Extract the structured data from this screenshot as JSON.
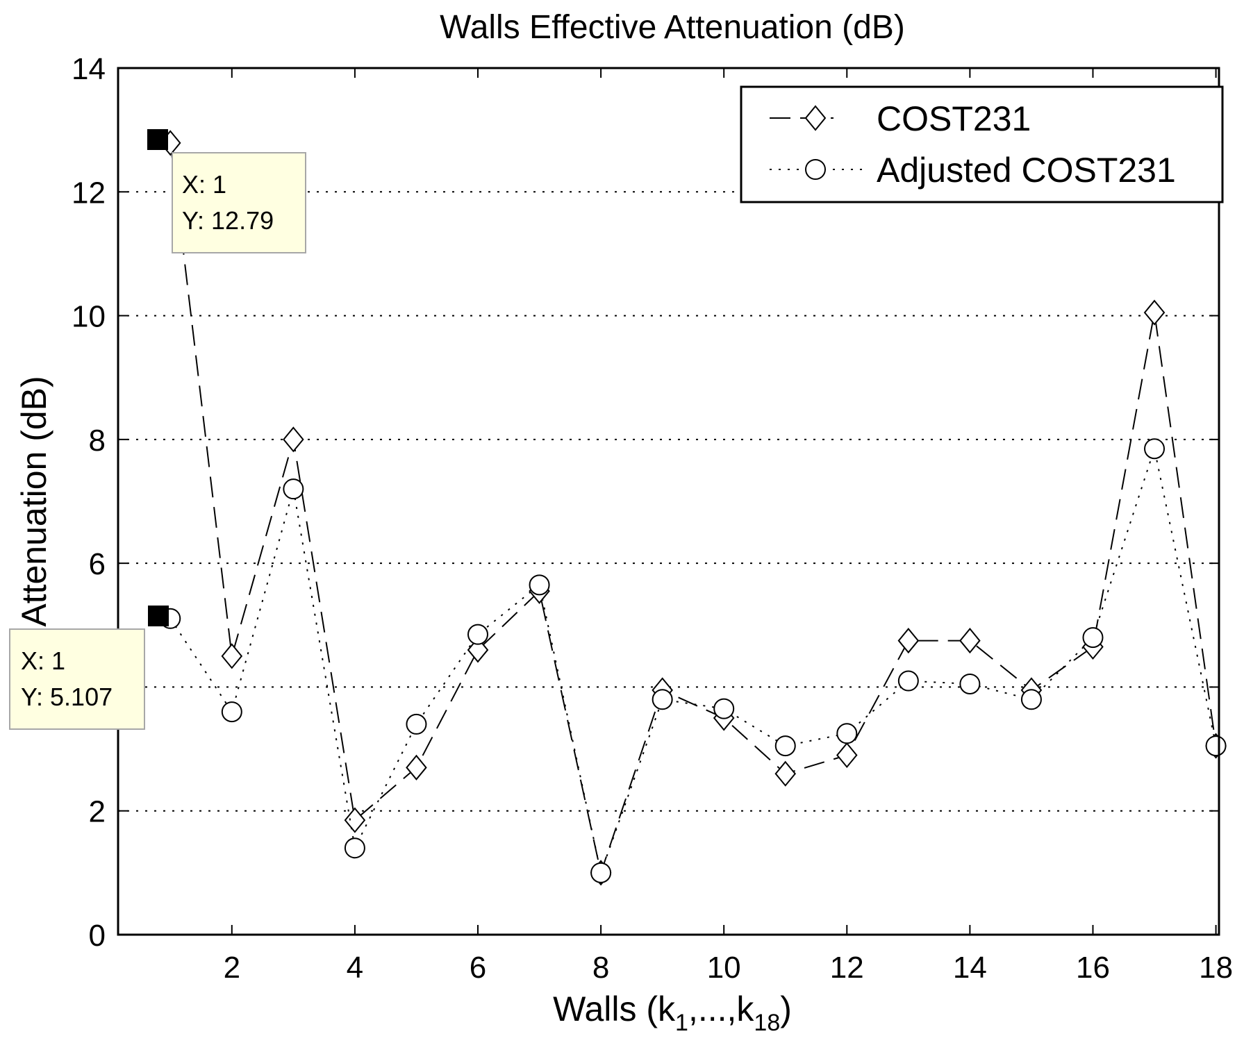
{
  "chart_data": {
    "type": "line",
    "title": "Walls Effective Attenuation (dB)",
    "xlabel": {
      "base": "Walls (k",
      "sub1": "1",
      "mid": ",...,k",
      "sub2": "18",
      "end": ")"
    },
    "ylabel": "Attenuation (dB)",
    "xlim": [
      0.15,
      18.05
    ],
    "ylim": [
      0,
      14
    ],
    "xticks": [
      2,
      4,
      6,
      8,
      10,
      12,
      14,
      16,
      18
    ],
    "yticks": [
      0,
      2,
      4,
      6,
      8,
      10,
      12,
      14
    ],
    "grid": "horizontal-dotted",
    "legend_position": "top-right",
    "x": [
      1,
      2,
      3,
      4,
      5,
      6,
      7,
      8,
      9,
      10,
      11,
      12,
      13,
      14,
      15,
      16,
      17,
      18
    ],
    "series": [
      {
        "name": "COST231",
        "marker": "diamond",
        "line_style": "dashed",
        "values": [
          12.79,
          4.5,
          8.0,
          1.85,
          2.7,
          4.6,
          5.55,
          1.0,
          3.95,
          3.5,
          2.6,
          2.9,
          4.75,
          4.75,
          3.95,
          4.65,
          10.05,
          3.05
        ]
      },
      {
        "name": "Adjusted COST231",
        "marker": "circle",
        "line_style": "dotted",
        "values": [
          5.107,
          3.6,
          7.2,
          1.4,
          3.4,
          4.85,
          5.65,
          1.0,
          3.8,
          3.65,
          3.05,
          3.25,
          4.1,
          4.05,
          3.8,
          4.8,
          7.85,
          3.05
        ]
      }
    ],
    "datatips": [
      {
        "series": "COST231",
        "x_label": "X: 1",
        "y_label": "Y: 12.79",
        "x": 1,
        "y": 12.79
      },
      {
        "series": "Adjusted COST231",
        "x_label": "X: 1",
        "y_label": "Y: 5.107",
        "x": 1,
        "y": 5.107
      }
    ]
  }
}
